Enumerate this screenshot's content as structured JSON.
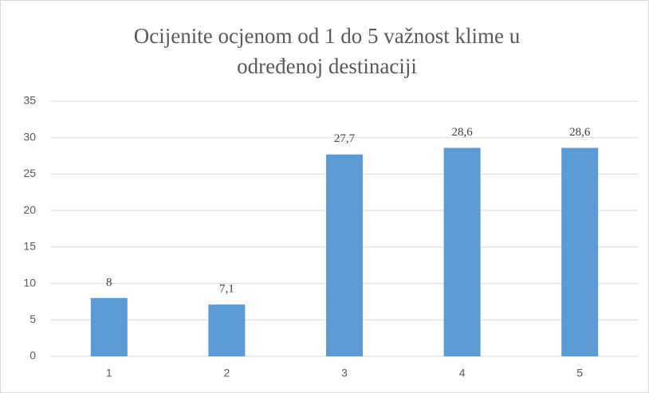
{
  "chart_data": {
    "type": "bar",
    "title": "Ocijenite ocjenom od 1 do 5 važnost klime u određenoj destinaciji",
    "categories": [
      "1",
      "2",
      "3",
      "4",
      "5"
    ],
    "values": [
      8,
      7.1,
      27.7,
      28.6,
      28.6
    ],
    "value_labels": [
      "8",
      "7,1",
      "27,7",
      "28,6",
      "28,6"
    ],
    "color": "#5b9bd5",
    "ylim": [
      0,
      35
    ],
    "yticks": [
      0,
      5,
      10,
      15,
      20,
      25,
      30,
      35
    ],
    "grid": true
  }
}
